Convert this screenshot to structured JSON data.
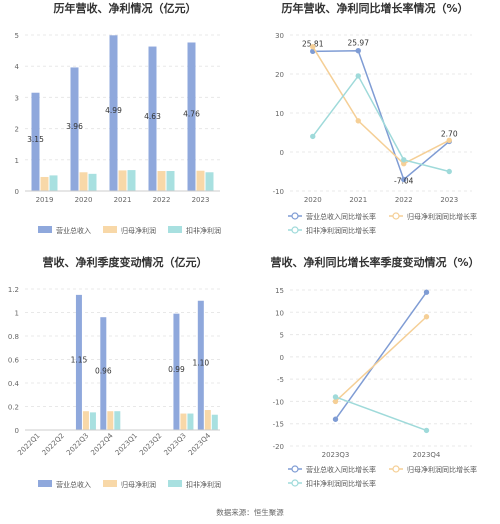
{
  "footer": {
    "source": "数据来源：恒生聚源"
  },
  "colors": {
    "revenue": "#8fa8dc",
    "parent_profit": "#f8d8a8",
    "deducted_profit": "#a8e0e0",
    "grid": "#e8e8e8",
    "axis_text": "#666666"
  },
  "chart_data": [
    {
      "type": "bar",
      "title": "历年营收、净利情况（亿元）",
      "categories": [
        "2019",
        "2020",
        "2021",
        "2022",
        "2023"
      ],
      "ylim": [
        0,
        5
      ],
      "yticks": [
        "0",
        "1",
        "2",
        "3",
        "4",
        "5"
      ],
      "series": [
        {
          "name": "营业总收入",
          "values": [
            3.15,
            3.96,
            4.99,
            4.63,
            4.76
          ],
          "labels": [
            "3.15",
            "3.96",
            "4.99",
            "4.63",
            "4.76"
          ]
        },
        {
          "name": "归母净利润",
          "values": [
            0.45,
            0.6,
            0.66,
            0.64,
            0.65
          ]
        },
        {
          "name": "扣非净利润",
          "values": [
            0.5,
            0.55,
            0.67,
            0.64,
            0.6
          ]
        }
      ],
      "legend": "bottom"
    },
    {
      "type": "line",
      "title": "历年营收、净利同比增长率情况（%）",
      "categories": [
        "2020",
        "2021",
        "2022",
        "2023"
      ],
      "ylim": [
        -10,
        30
      ],
      "yticks": [
        "-10",
        "0",
        "10",
        "20",
        "30"
      ],
      "series": [
        {
          "name": "营业总收入同比增长率",
          "values": [
            25.81,
            25.97,
            -7.04,
            2.7
          ],
          "labels": [
            "25.81",
            "25.97",
            "-7.04",
            "2.70"
          ]
        },
        {
          "name": "归母净利润同比增长率",
          "values": [
            27,
            8,
            -3,
            3
          ]
        },
        {
          "name": "扣非净利润同比增长率",
          "values": [
            4,
            19.5,
            -2,
            -5
          ]
        }
      ],
      "legend": "bottom"
    },
    {
      "type": "bar",
      "title": "营收、净利季度变动情况（亿元）",
      "categories": [
        "2022Q1",
        "2022Q2",
        "2022Q3",
        "2022Q4",
        "2023Q1",
        "2023Q2",
        "2023Q3",
        "2023Q4"
      ],
      "ylim": [
        0,
        1.2
      ],
      "yticks": [
        "0",
        "0.2",
        "0.4",
        "0.6",
        "0.8",
        "1",
        "1.2"
      ],
      "series": [
        {
          "name": "营业总收入",
          "values": [
            null,
            null,
            1.15,
            0.96,
            null,
            null,
            0.99,
            1.1
          ],
          "labels": [
            "",
            "",
            "1.15",
            "0.96",
            "",
            "",
            "0.99",
            "1.10"
          ]
        },
        {
          "name": "归母净利润",
          "values": [
            null,
            null,
            0.16,
            0.16,
            null,
            null,
            0.14,
            0.17
          ]
        },
        {
          "name": "扣非净利润",
          "values": [
            null,
            null,
            0.15,
            0.16,
            null,
            null,
            0.14,
            0.13
          ]
        }
      ],
      "legend": "bottom"
    },
    {
      "type": "line",
      "title": "营收、净利同比增长率季度变动情况（%）",
      "categories": [
        "2023Q3",
        "2023Q4"
      ],
      "ylim": [
        -20,
        15
      ],
      "yticks": [
        "-20",
        "-15",
        "-10",
        "-5",
        "0",
        "5",
        "10",
        "15"
      ],
      "series": [
        {
          "name": "营业总收入同比增长率",
          "values": [
            -14,
            14.5
          ]
        },
        {
          "name": "归母净利润同比增长率",
          "values": [
            -10,
            9
          ]
        },
        {
          "name": "扣非净利润同比增长率",
          "values": [
            -9,
            -16.5
          ]
        }
      ],
      "legend": "bottom"
    }
  ]
}
